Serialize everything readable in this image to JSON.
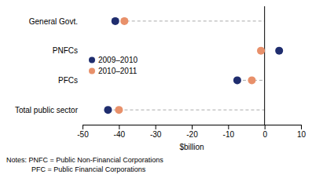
{
  "chart_data": {
    "type": "dot",
    "orientation": "horizontal",
    "categories": [
      "General Govt.",
      "PNFCs",
      "PFCs",
      "Total public sector"
    ],
    "series": [
      {
        "name": "2009–2010",
        "color": "#1f2d6e",
        "values": [
          -41.0,
          4.0,
          -7.5,
          -43.0
        ]
      },
      {
        "name": "2010–2011",
        "color": "#e8906a",
        "values": [
          -38.5,
          -1.0,
          -3.5,
          -40.0
        ]
      }
    ],
    "xlabel": "$billion",
    "xlim": [
      -50,
      10
    ],
    "xticks": [
      -50,
      -40,
      -30,
      -20,
      -10,
      0,
      10
    ],
    "legend": "center left",
    "annotations": [
      "Notes: PNFC = Public Non-Financial Corporations",
      "PFC = Public Financial Corporations"
    ]
  }
}
